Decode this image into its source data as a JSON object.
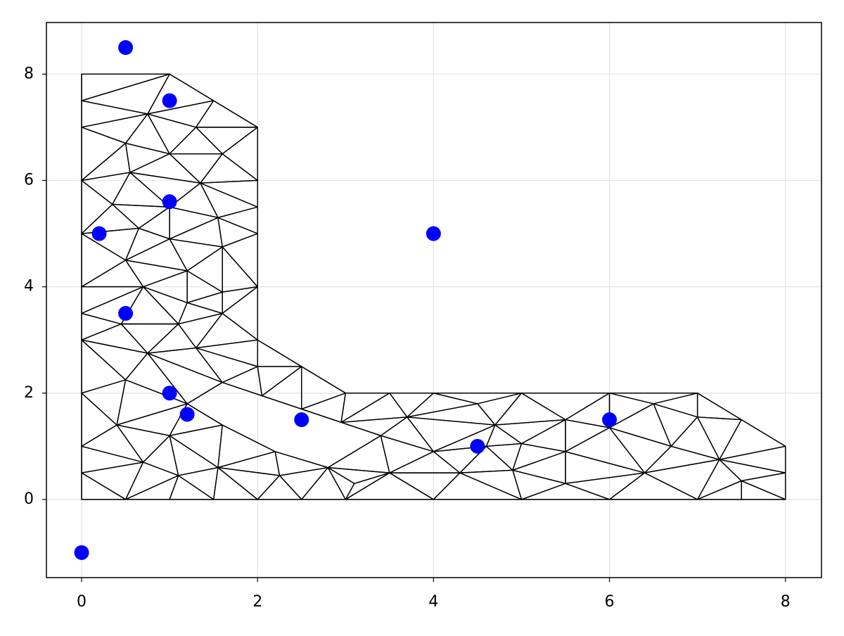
{
  "chart_data": {
    "type": "scatter",
    "x": [
      0.5,
      1,
      1,
      0.2,
      4,
      0.5,
      1,
      1.2,
      2.5,
      4.5,
      6,
      0
    ],
    "values": [
      8.5,
      7.5,
      5.6,
      5,
      5,
      3.5,
      2,
      1.6,
      1.5,
      1,
      1.5,
      -1
    ],
    "color": "#0000ff",
    "xlim": [
      -0.4,
      8.41
    ],
    "ylim": [
      -1.47,
      8.97
    ],
    "xticks": [
      0,
      2,
      4,
      6,
      8
    ],
    "yticks": [
      0,
      2,
      4,
      6,
      8
    ],
    "grid": true,
    "mesh": {
      "color": "#000000",
      "vertices": [
        [
          0,
          8
        ],
        [
          1,
          8
        ],
        [
          2,
          7
        ],
        [
          0,
          7.5
        ],
        [
          0.75,
          7.25
        ],
        [
          1.5,
          7.5
        ],
        [
          0,
          7
        ],
        [
          1.3,
          7
        ],
        [
          0.5,
          6.7
        ],
        [
          1,
          6.5
        ],
        [
          1.6,
          6.5
        ],
        [
          0,
          6
        ],
        [
          0.55,
          6.15
        ],
        [
          1.35,
          5.95
        ],
        [
          2,
          6
        ],
        [
          0.35,
          5.55
        ],
        [
          1,
          5.5
        ],
        [
          1.55,
          5.3
        ],
        [
          2,
          5.5
        ],
        [
          0,
          5
        ],
        [
          0.65,
          5.1
        ],
        [
          1,
          4.9
        ],
        [
          2,
          5
        ],
        [
          0.5,
          4.5
        ],
        [
          1.2,
          4.3
        ],
        [
          1.6,
          4.75
        ],
        [
          0,
          4
        ],
        [
          0.7,
          4
        ],
        [
          1.6,
          3.9
        ],
        [
          2,
          4
        ],
        [
          0,
          3.5
        ],
        [
          1.2,
          3.7
        ],
        [
          0.45,
          3.3
        ],
        [
          1.1,
          3.3
        ],
        [
          1.6,
          3.5
        ],
        [
          0,
          3
        ],
        [
          0.75,
          2.75
        ],
        [
          1.3,
          2.85
        ],
        [
          2,
          3
        ],
        [
          0.5,
          2.25
        ],
        [
          1.6,
          2.2
        ],
        [
          2,
          2.5
        ],
        [
          2.5,
          2.5
        ],
        [
          2.05,
          1.95
        ],
        [
          0,
          2
        ],
        [
          0,
          1
        ],
        [
          0,
          0.5
        ],
        [
          0,
          0
        ],
        [
          0.4,
          1.4
        ],
        [
          0.7,
          0.7
        ],
        [
          1,
          1.2
        ],
        [
          1.2,
          1.8
        ],
        [
          1.6,
          1.4
        ],
        [
          0.5,
          0
        ],
        [
          1,
          0
        ],
        [
          1.5,
          0
        ],
        [
          2,
          0
        ],
        [
          2.5,
          0
        ],
        [
          3,
          0
        ],
        [
          4,
          0
        ],
        [
          5,
          0
        ],
        [
          6,
          0
        ],
        [
          7,
          0
        ],
        [
          7.5,
          0
        ],
        [
          8,
          0
        ],
        [
          8,
          0.5
        ],
        [
          8,
          1
        ],
        [
          7.5,
          1.5
        ],
        [
          7,
          2
        ],
        [
          6,
          2
        ],
        [
          5,
          2
        ],
        [
          4,
          2
        ],
        [
          3.5,
          2
        ],
        [
          3,
          2
        ],
        [
          2.5,
          1.7
        ],
        [
          2.95,
          1.45
        ],
        [
          3.4,
          1.2
        ],
        [
          2.8,
          0.6
        ],
        [
          2.2,
          0.9
        ],
        [
          1.55,
          0.6
        ],
        [
          1.1,
          0.45
        ],
        [
          2.25,
          0.45
        ],
        [
          3.5,
          0.5
        ],
        [
          4.3,
          0.5
        ],
        [
          3.7,
          1.55
        ],
        [
          4,
          0.9
        ],
        [
          4.7,
          1.4
        ],
        [
          5,
          1.05
        ],
        [
          5.5,
          1.5
        ],
        [
          5.5,
          0.9
        ],
        [
          5.5,
          0.3
        ],
        [
          4.9,
          0.55
        ],
        [
          6,
          1.35
        ],
        [
          6.4,
          0.5
        ],
        [
          6.7,
          1
        ],
        [
          7,
          1.55
        ],
        [
          7.25,
          0.75
        ],
        [
          6.5,
          1.8
        ],
        [
          4.5,
          1.8
        ],
        [
          7.5,
          0.35
        ],
        [
          3.1,
          0.3
        ],
        [
          4.6,
          1
        ]
      ],
      "boundary": [
        [
          0,
          0
        ],
        [
          8,
          0
        ],
        [
          8,
          1
        ],
        [
          7.5,
          1.5
        ],
        [
          7,
          2
        ],
        [
          3,
          2
        ],
        [
          2.5,
          2.5
        ],
        [
          2,
          3
        ],
        [
          2,
          7
        ],
        [
          1,
          8
        ],
        [
          0,
          8
        ]
      ],
      "hole": [
        [
          1.2,
          1.8
        ],
        [
          1.6,
          2.2
        ],
        [
          2.05,
          1.95
        ],
        [
          2.5,
          1.7
        ],
        [
          2.95,
          1.45
        ],
        [
          3.4,
          1.2
        ],
        [
          2.8,
          0.6
        ],
        [
          2.2,
          0.9
        ],
        [
          1.6,
          1.4
        ]
      ]
    }
  }
}
